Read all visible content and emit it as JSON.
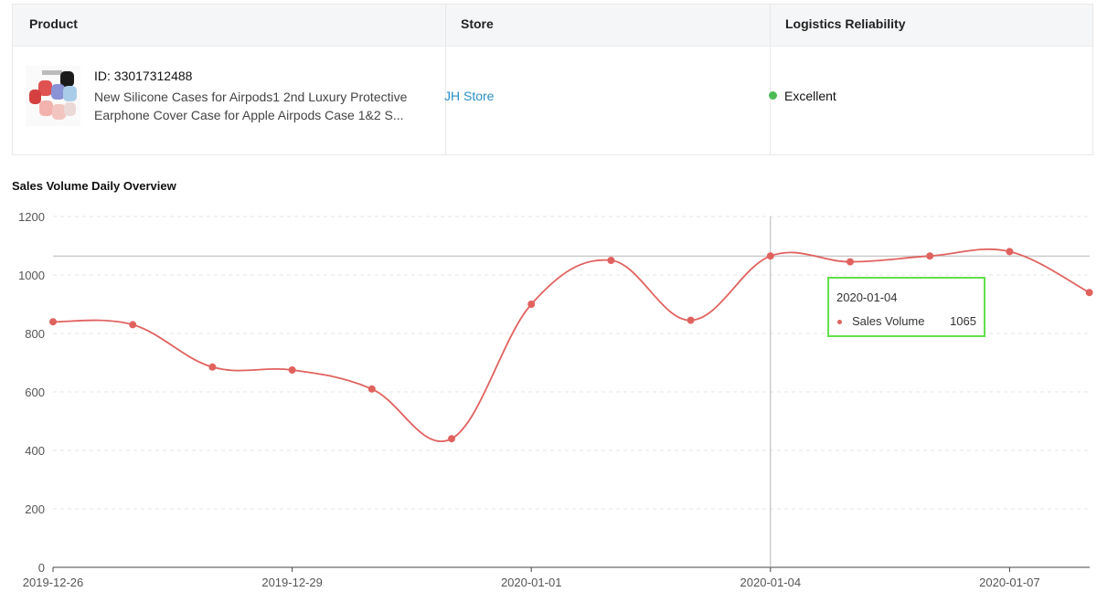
{
  "table": {
    "headers": {
      "product": "Product",
      "store": "Store",
      "logistics": "Logistics Reliability"
    },
    "row": {
      "product_id": "ID: 33017312488",
      "product_title": "New Silicone Cases for Airpods1 2nd Luxury Protective Earphone Cover Case for Apple Airpods Case 1&2 S...",
      "store_name": "JH Store",
      "logistics_status": "Excellent",
      "logistics_color": "#4cbb54",
      "thumbnail_icon": "airpods-case-thumbnail"
    }
  },
  "tooltip": {
    "date": "2020-01-04",
    "series_name": "Sales Volume",
    "value": "1065"
  },
  "chart_data": {
    "type": "line",
    "title": "Sales Volume Daily Overview",
    "series": [
      {
        "name": "Sales Volume",
        "color": "#e0625f",
        "x": [
          "2019-12-26",
          "2019-12-27",
          "2019-12-28",
          "2019-12-29",
          "2019-12-30",
          "2019-12-31",
          "2020-01-01",
          "2020-01-02",
          "2020-01-03",
          "2020-01-04",
          "2020-01-05",
          "2020-01-06",
          "2020-01-07",
          "2020-01-08"
        ],
        "values": [
          840,
          830,
          685,
          675,
          610,
          440,
          900,
          1050,
          845,
          1065,
          1045,
          1065,
          1080,
          940
        ]
      }
    ],
    "x_tick_labels": [
      "2019-12-26",
      "2019-12-29",
      "2020-01-01",
      "2020-01-04",
      "2020-01-07"
    ],
    "y_ticks": [
      0,
      200,
      400,
      600,
      800,
      1000,
      1200
    ],
    "ylim": [
      0,
      1200
    ],
    "grid": true,
    "smooth": true,
    "highlight_date": "2020-01-04"
  }
}
